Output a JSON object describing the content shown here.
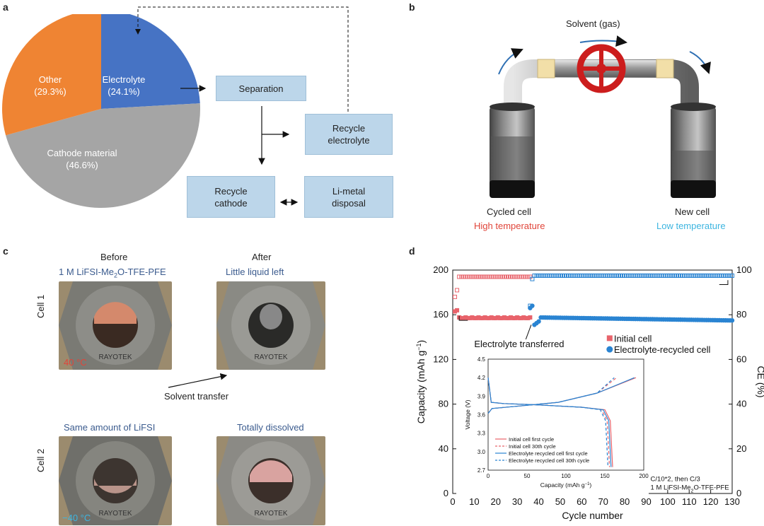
{
  "panels": {
    "a": "a",
    "b": "b",
    "c": "c",
    "d": "d"
  },
  "panel_a": {
    "pie": [
      {
        "label": "Other",
        "pct": "(29.3%)",
        "value": 29.3,
        "color": "#ef8433"
      },
      {
        "label": "Electrolyte",
        "pct": "(24.1%)",
        "value": 24.1,
        "color": "#4673c4"
      },
      {
        "label": "Cathode material",
        "pct": "(46.6%)",
        "value": 46.6,
        "color": "#a5a5a5"
      }
    ],
    "boxes": {
      "separation": "Separation",
      "recycle_electrolyte": "Recycle\nelectrolyte",
      "recycle_cathode": "Recycle\ncathode",
      "li_metal": "Li-metal\ndisposal"
    }
  },
  "panel_b": {
    "solvent": "Solvent (gas)",
    "cycled_cell": "Cycled cell",
    "high_temp": "High temperature",
    "new_cell": "New cell",
    "low_temp": "Low temperature"
  },
  "panel_c": {
    "before": "Before",
    "after": "After",
    "electrolyte_label": "1 M LiFSI-Me",
    "electrolyte_sub": "2",
    "electrolyte_tail": "O-TFE-PFE",
    "little_liquid": "Little liquid left",
    "same_amount": "Same amount of LiFSI",
    "totally_dissolved": "Totally dissolved",
    "cell1": "Cell 1",
    "cell2": "Cell 2",
    "temp1": "40 °C",
    "temp2": "−40 °C",
    "solvent_transfer": "Solvent transfer",
    "stamp": "RAYOTEK"
  },
  "chart_data": {
    "type": "scatter",
    "xlabel": "Cycle number",
    "ylabel": "Capacity (mAh g",
    "ylabel_sup": "−1",
    "ylabel_tail": ")",
    "y2label": "CE (%)",
    "xlim": [
      0,
      130
    ],
    "ylim": [
      0,
      200
    ],
    "y2lim": [
      0,
      100
    ],
    "xticks": [
      0,
      10,
      20,
      30,
      40,
      50,
      60,
      70,
      80,
      90,
      100,
      110,
      120,
      130
    ],
    "yticks": [
      0,
      40,
      80,
      120,
      160,
      200
    ],
    "y2ticks": [
      0,
      20,
      40,
      60,
      80,
      100
    ],
    "legend": [
      "Initial cell",
      "Electrolyte-recycled cell"
    ],
    "legend_position": "right-middle",
    "annotation": "Electrolyte transferred",
    "condition1": "C/10*2, then C/3",
    "condition2_a": "1 M LiFSI-Me",
    "condition2_sub": "2",
    "condition2_b": "O-TFE-PFE",
    "colors": {
      "initial": "#e8636b",
      "recycled": "#2a84d2"
    },
    "series": [
      {
        "name": "Initial cell",
        "capacity": {
          "x_from": 1,
          "x_to": 36,
          "first": [
            163,
            164
          ],
          "value": 157
        },
        "ce": {
          "x_from": 1,
          "x_to": 36,
          "first": [
            88,
            91
          ],
          "value": 97
        }
      },
      {
        "name": "Electrolyte-recycled cell",
        "capacity": {
          "x_from": 36,
          "x_to": 130,
          "start": [
            166,
            168
          ],
          "value": 157
        },
        "ce": {
          "x_from": 36,
          "x_to": 130,
          "first": [
            84,
            96
          ],
          "value": 97.5
        }
      }
    ],
    "inset": {
      "xlabel": "Capacity (mAh g",
      "xlabel_sup": "−1",
      "xlabel_tail": ")",
      "ylabel": "Voltage (V)",
      "xlim": [
        0,
        200
      ],
      "ylim": [
        2.7,
        4.5
      ],
      "xticks": [
        0,
        50,
        100,
        150,
        200
      ],
      "yticks": [
        2.7,
        3.0,
        3.3,
        3.6,
        3.9,
        4.2,
        4.5
      ],
      "ytick_labels": [
        "2.7",
        "3.0",
        "3.3",
        "3.6",
        "3.9",
        "4.2",
        "4.5"
      ],
      "legend": [
        "Initial cell first cycle",
        "Initial cell 30th cycle",
        "Electrolyte recycled cell first cycle",
        "Electrolyte recycled cell 30th cycle"
      ]
    }
  }
}
